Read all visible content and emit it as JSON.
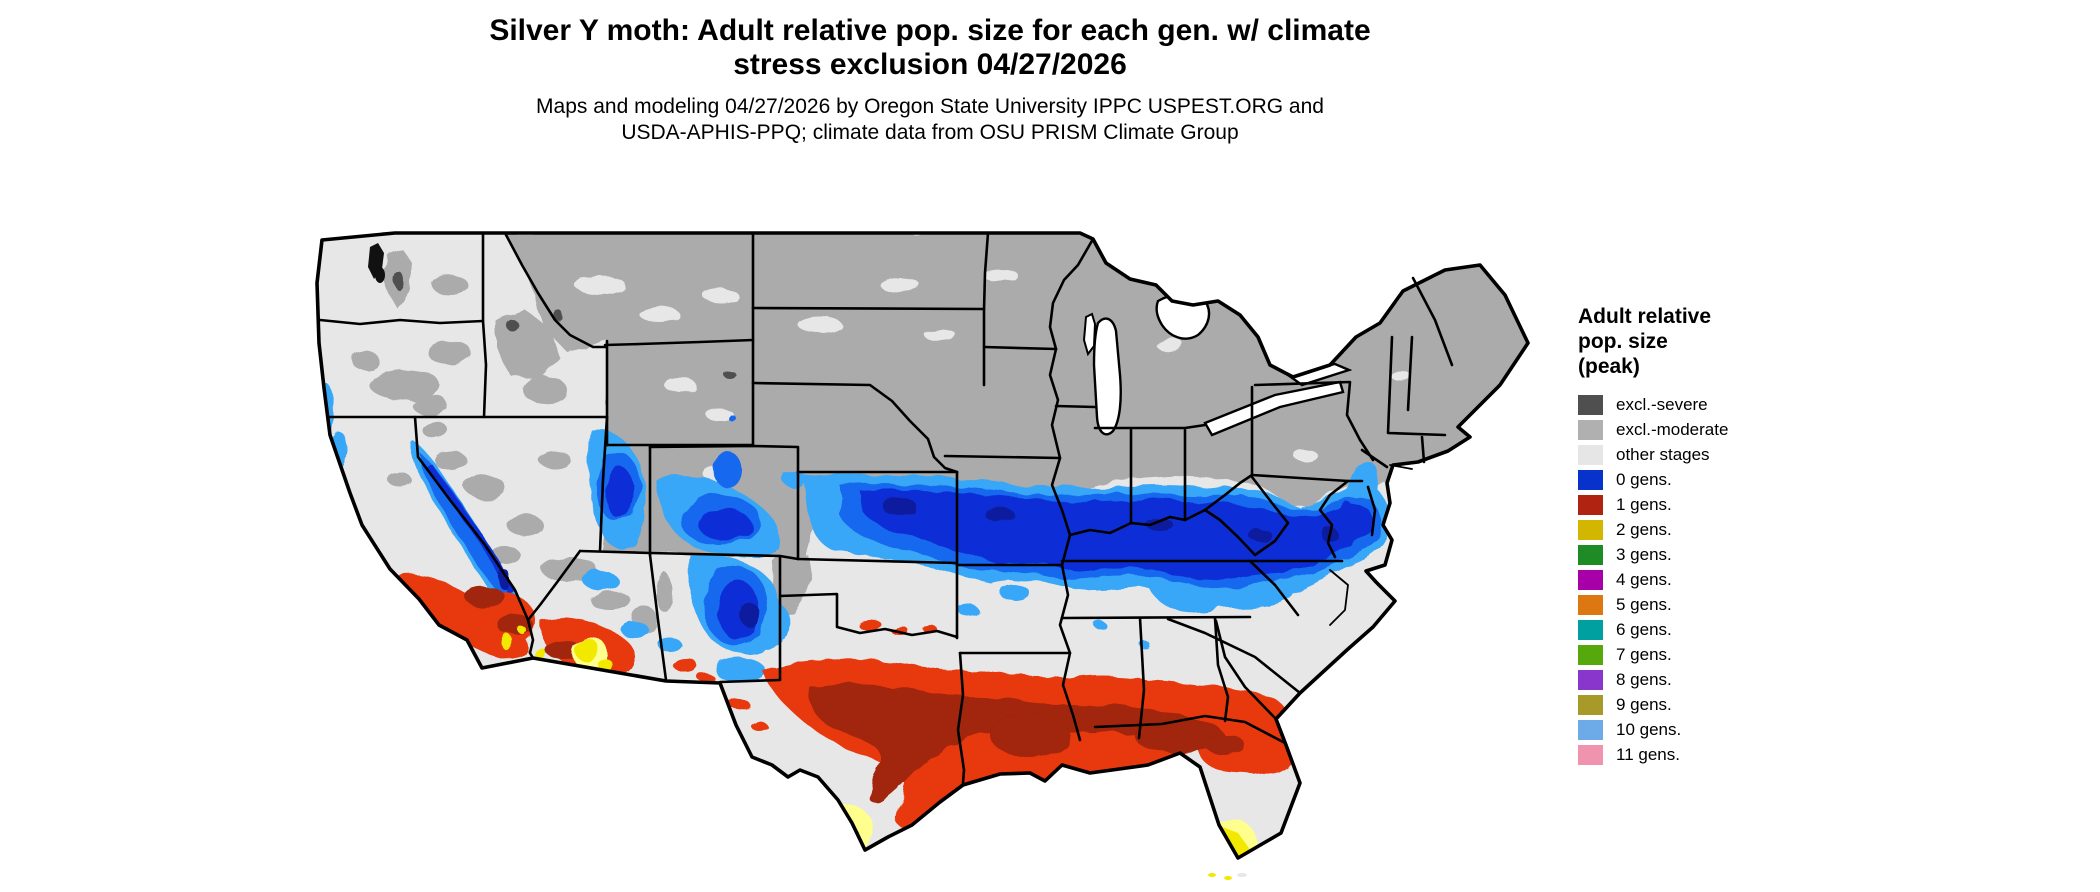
{
  "header": {
    "title_line1": "Silver Y moth: Adult relative pop. size for each gen. w/ climate",
    "title_line2": "stress exclusion 04/27/2026",
    "subtitle_line1": "Maps and modeling 04/27/2026 by Oregon State University IPPC USPEST.ORG and",
    "subtitle_line2": "USDA-APHIS-PPQ; climate data from OSU PRISM Climate Group"
  },
  "legend": {
    "title_lines": [
      "Adult relative",
      "pop. size",
      "(peak)"
    ],
    "items": [
      {
        "label": "excl.-severe",
        "color": "#4f4f4f"
      },
      {
        "label": "excl.-moderate",
        "color": "#b0b0b0"
      },
      {
        "label": "other stages",
        "color": "#e6e6e6"
      },
      {
        "label": "0 gens.",
        "color": "#0832cc"
      },
      {
        "label": "1 gens.",
        "color": "#b02310"
      },
      {
        "label": "2 gens.",
        "color": "#d2b600"
      },
      {
        "label": "3 gens.",
        "color": "#1f8b24"
      },
      {
        "label": "4 gens.",
        "color": "#a800a8"
      },
      {
        "label": "5 gens.",
        "color": "#dd7712"
      },
      {
        "label": "6 gens.",
        "color": "#00a0a0"
      },
      {
        "label": "7 gens.",
        "color": "#56a80c"
      },
      {
        "label": "8 gens.",
        "color": "#8836cc"
      },
      {
        "label": "9 gens.",
        "color": "#a89a28"
      },
      {
        "label": "10 gens.",
        "color": "#6cabe8"
      },
      {
        "label": "11 gens.",
        "color": "#f093ae"
      }
    ]
  },
  "map": {
    "region": "Contiguous United States",
    "colors": {
      "land": "#e7e7e7",
      "excl_moderate": "#ababab",
      "excl_severe": "#4f4f4f",
      "gen0_navy": "#0a1f9e",
      "gen0_dark": "#0b2fd6",
      "gen0_mid": "#1767ee",
      "gen0_light": "#39a7f7",
      "gen1_bright": "#e8380c",
      "gen1_dark": "#a22507",
      "gen2_yellow": "#f2e800",
      "gen2_pale": "#ffff8e",
      "border": "#000000",
      "water": "#ffffff"
    }
  }
}
